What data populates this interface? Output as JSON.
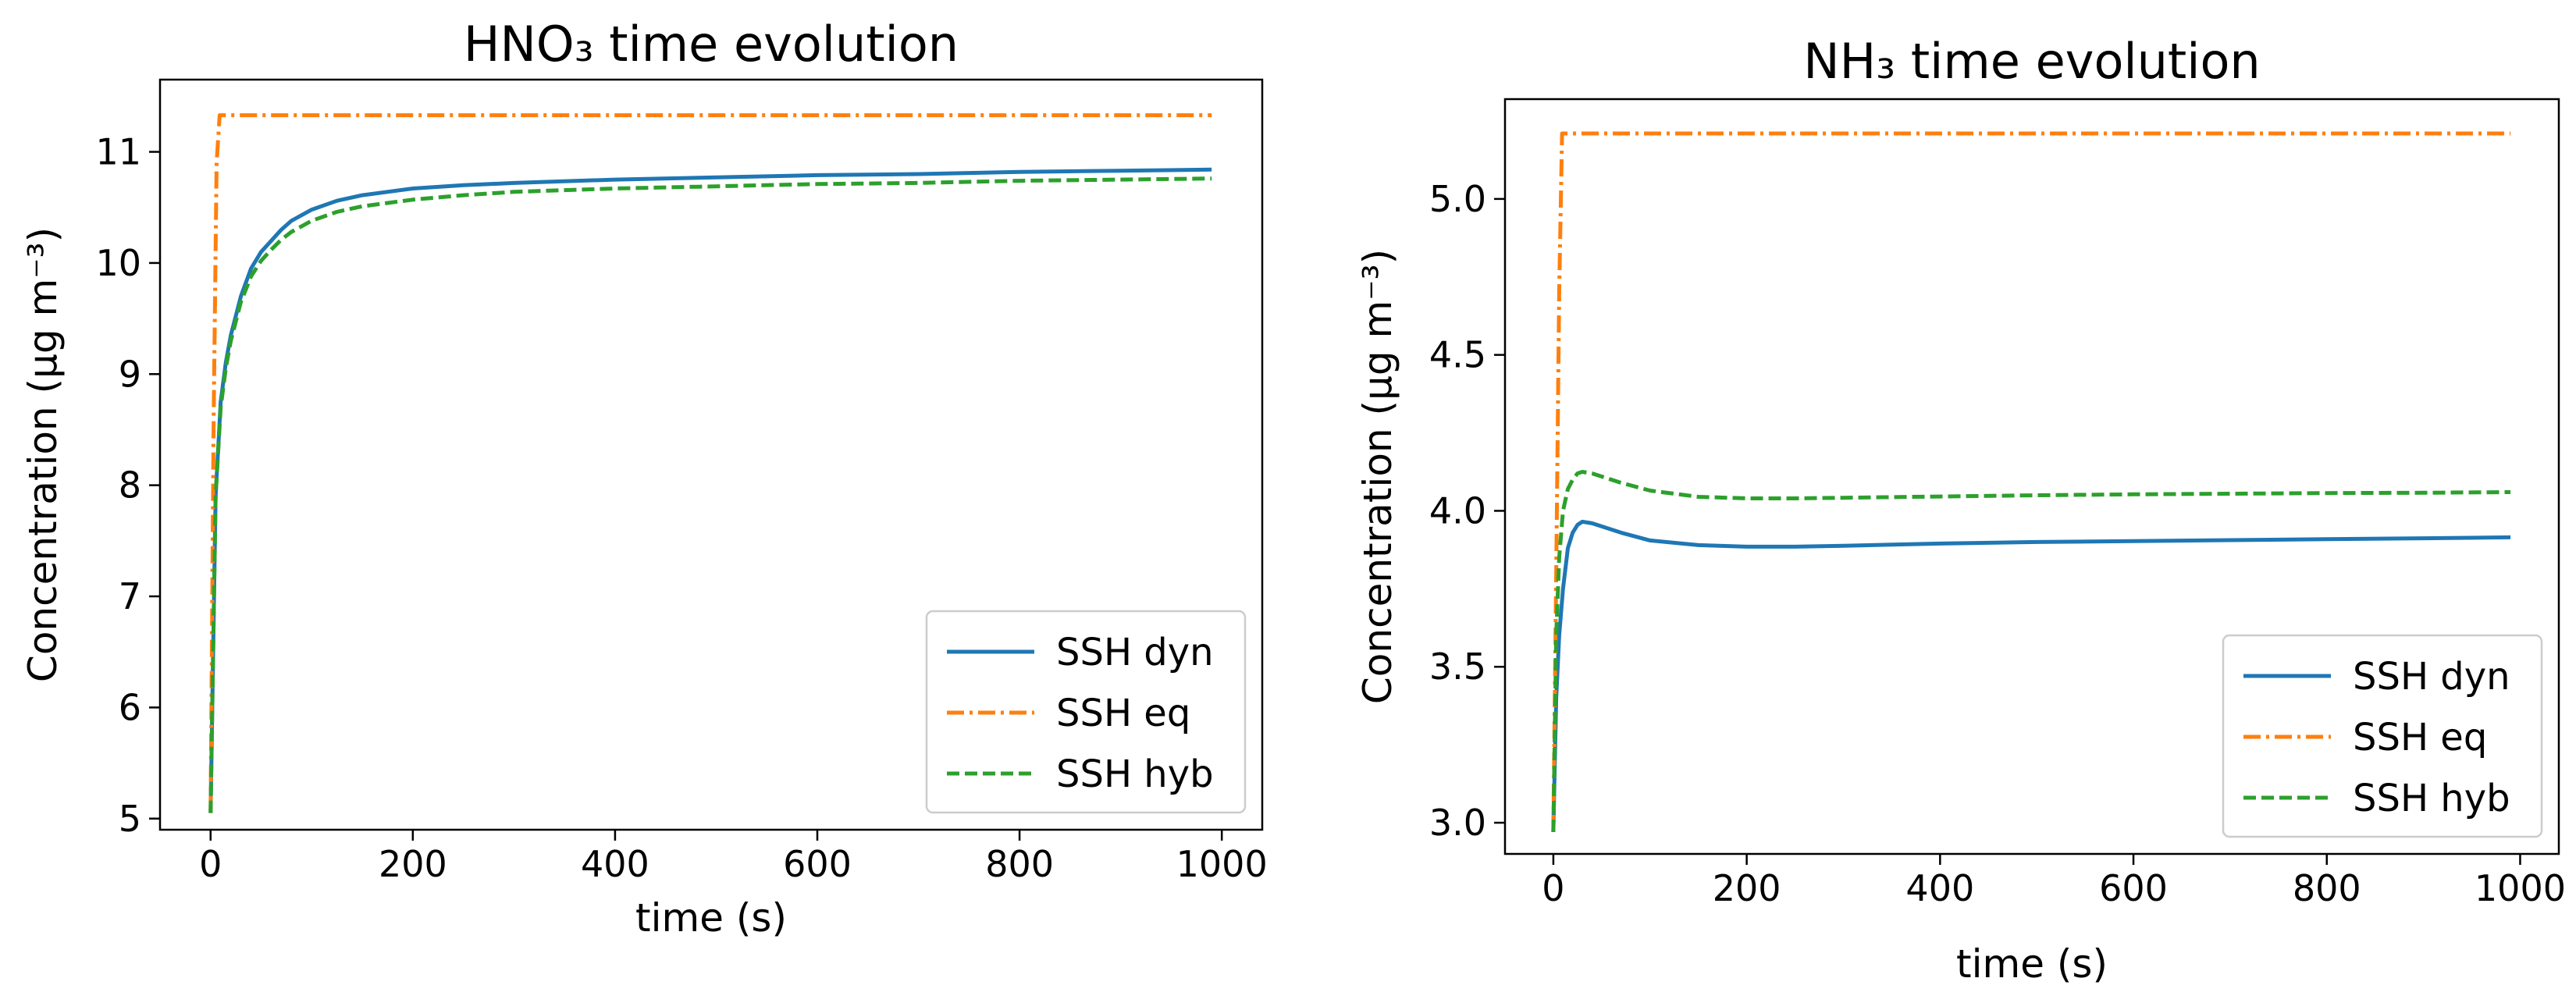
{
  "chart_data": [
    {
      "type": "line",
      "title": "HNO₃ time evolution",
      "xlabel": "time (s)",
      "ylabel": "Concentration (µg m⁻³)",
      "xlim": [
        -50,
        1040
      ],
      "ylim": [
        4.9,
        11.65
      ],
      "xticks": [
        0,
        200,
        400,
        600,
        800,
        1000
      ],
      "xtick_labels": [
        "0",
        "200",
        "400",
        "600",
        "800",
        "1000"
      ],
      "yticks": [
        5,
        6,
        7,
        8,
        9,
        10,
        11
      ],
      "ytick_labels": [
        "5",
        "6",
        "7",
        "8",
        "9",
        "10",
        "11"
      ],
      "legend_position": "lower-right",
      "series": [
        {
          "name": "SSH dyn",
          "color": "#1f77b4",
          "dash": "solid",
          "x": [
            0,
            5,
            10,
            15,
            20,
            30,
            40,
            50,
            60,
            70,
            80,
            100,
            125,
            150,
            200,
            250,
            300,
            400,
            500,
            600,
            700,
            800,
            900,
            990
          ],
          "y": [
            5.05,
            7.9,
            8.75,
            9.1,
            9.35,
            9.7,
            9.95,
            10.1,
            10.2,
            10.3,
            10.38,
            10.48,
            10.56,
            10.61,
            10.67,
            10.7,
            10.72,
            10.75,
            10.77,
            10.79,
            10.8,
            10.82,
            10.83,
            10.84
          ]
        },
        {
          "name": "SSH eq",
          "color": "#ff7f0e",
          "dash": "dashdot",
          "x": [
            0,
            3,
            6,
            9,
            990
          ],
          "y": [
            5.05,
            8.6,
            10.9,
            11.33,
            11.33
          ]
        },
        {
          "name": "SSH hyb",
          "color": "#2ca02c",
          "dash": "dashed",
          "x": [
            0,
            5,
            10,
            15,
            20,
            30,
            40,
            50,
            60,
            70,
            80,
            100,
            125,
            150,
            200,
            250,
            300,
            400,
            500,
            600,
            700,
            800,
            900,
            990
          ],
          "y": [
            5.05,
            7.9,
            8.7,
            9.05,
            9.3,
            9.65,
            9.88,
            10.02,
            10.12,
            10.21,
            10.28,
            10.38,
            10.46,
            10.51,
            10.57,
            10.61,
            10.64,
            10.67,
            10.69,
            10.71,
            10.72,
            10.74,
            10.75,
            10.76
          ]
        }
      ]
    },
    {
      "type": "line",
      "title": "NH₃ time evolution",
      "xlabel": "time (s)",
      "ylabel": "Concentration (µg m⁻³)",
      "xlim": [
        -50,
        1040
      ],
      "ylim": [
        2.9,
        5.32
      ],
      "xticks": [
        0,
        200,
        400,
        600,
        800,
        1000
      ],
      "xtick_labels": [
        "0",
        "200",
        "400",
        "600",
        "800",
        "1000"
      ],
      "yticks": [
        3.0,
        3.5,
        4.0,
        4.5,
        5.0
      ],
      "ytick_labels": [
        "3.0",
        "3.5",
        "4.0",
        "4.5",
        "5.0"
      ],
      "legend_position": "lower-right",
      "series": [
        {
          "name": "SSH dyn",
          "color": "#1f77b4",
          "dash": "solid",
          "x": [
            0,
            3,
            6,
            10,
            15,
            20,
            25,
            30,
            40,
            50,
            70,
            100,
            150,
            200,
            250,
            300,
            400,
            500,
            600,
            700,
            800,
            900,
            990
          ],
          "y": [
            2.97,
            3.4,
            3.6,
            3.75,
            3.88,
            3.93,
            3.955,
            3.965,
            3.96,
            3.95,
            3.93,
            3.905,
            3.89,
            3.885,
            3.885,
            3.888,
            3.895,
            3.9,
            3.903,
            3.906,
            3.909,
            3.912,
            3.915
          ]
        },
        {
          "name": "SSH eq",
          "color": "#ff7f0e",
          "dash": "dashdot",
          "x": [
            0,
            3,
            6,
            9,
            990
          ],
          "y": [
            2.97,
            3.8,
            4.7,
            5.21,
            5.21
          ]
        },
        {
          "name": "SSH hyb",
          "color": "#2ca02c",
          "dash": "dashed",
          "x": [
            0,
            3,
            6,
            10,
            15,
            20,
            25,
            30,
            40,
            50,
            70,
            100,
            150,
            200,
            250,
            300,
            400,
            500,
            600,
            700,
            800,
            900,
            990
          ],
          "y": [
            2.97,
            3.6,
            3.85,
            4.0,
            4.07,
            4.1,
            4.12,
            4.125,
            4.12,
            4.11,
            4.09,
            4.065,
            4.045,
            4.04,
            4.04,
            4.042,
            4.046,
            4.05,
            4.053,
            4.055,
            4.057,
            4.058,
            4.06
          ]
        }
      ]
    }
  ]
}
